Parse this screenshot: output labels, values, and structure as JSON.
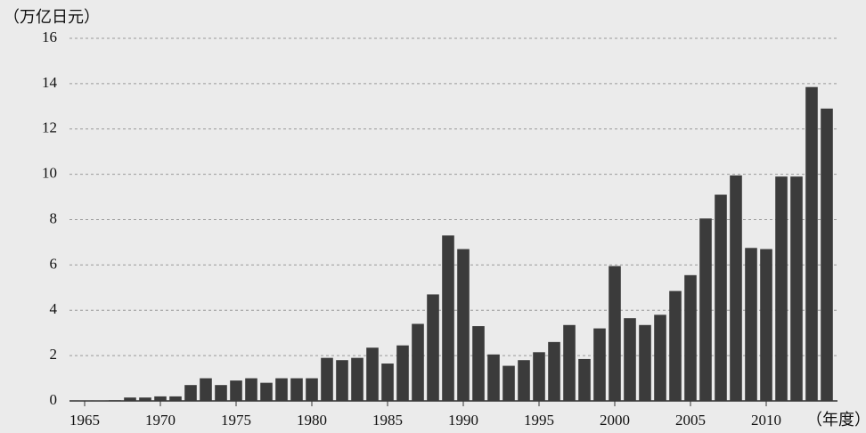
{
  "chart_data": {
    "type": "bar",
    "y_label": "（万亿日元）",
    "x_label": "（年度）",
    "x": [
      1965,
      1966,
      1967,
      1968,
      1969,
      1970,
      1971,
      1972,
      1973,
      1974,
      1975,
      1976,
      1977,
      1978,
      1979,
      1980,
      1981,
      1982,
      1983,
      1984,
      1985,
      1986,
      1987,
      1988,
      1989,
      1990,
      1991,
      1992,
      1993,
      1994,
      1995,
      1996,
      1997,
      1998,
      1999,
      2000,
      2001,
      2002,
      2003,
      2004,
      2005,
      2006,
      2007,
      2008,
      2009,
      2010,
      2011,
      2012,
      2013,
      2014
    ],
    "values": [
      0.02,
      0.02,
      0.03,
      0.15,
      0.15,
      0.2,
      0.2,
      0.7,
      1.0,
      0.7,
      0.9,
      1.0,
      0.8,
      1.0,
      1.0,
      1.0,
      1.9,
      1.8,
      1.9,
      2.35,
      1.65,
      2.45,
      3.4,
      4.7,
      7.3,
      6.7,
      3.3,
      2.05,
      1.55,
      1.8,
      2.15,
      2.6,
      3.35,
      1.85,
      3.2,
      5.95,
      3.65,
      3.35,
      3.8,
      4.85,
      5.55,
      8.05,
      9.1,
      9.95,
      6.75,
      6.7,
      9.9,
      9.9,
      13.85,
      12.9
    ],
    "color": "#3b3b3b",
    "xlim": [
      1964,
      2015
    ],
    "xticks": [
      1965,
      1970,
      1975,
      1980,
      1985,
      1990,
      1995,
      2000,
      2005,
      2010
    ],
    "ylim": [
      0,
      16
    ],
    "yticks": [
      0,
      2,
      4,
      6,
      8,
      10,
      12,
      14,
      16
    ],
    "grid": true
  }
}
